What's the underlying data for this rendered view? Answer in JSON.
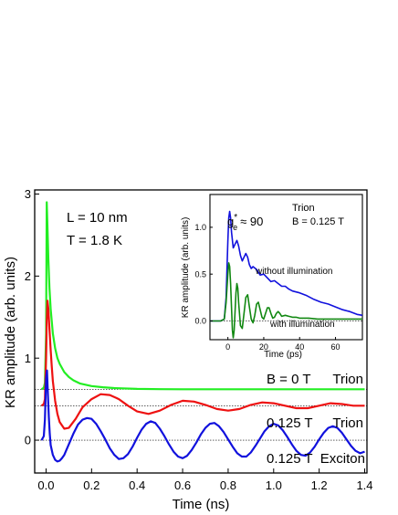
{
  "chart_data": [
    {
      "type": "line",
      "xlabel": "Time (ns)",
      "ylabel": "KR amplitude  (arb. units)",
      "xlim": [
        -0.05,
        1.41
      ],
      "ylim": [
        -0.4,
        3.05
      ],
      "xticks": [
        0.0,
        0.2,
        0.4,
        0.6,
        0.8,
        1.0,
        1.2,
        1.4
      ],
      "xtick_labels": [
        "0.0",
        "0.2",
        "0.4",
        "0.6",
        "0.8",
        "1.0",
        "1.2",
        "1.4"
      ],
      "yticks": [
        0,
        1,
        2,
        3
      ],
      "ytick_labels": [
        "0",
        "1",
        "2",
        "3"
      ],
      "grid": false,
      "annotations": {
        "sample_L": "L = 10 nm",
        "temperature": "T = 1.8 K"
      },
      "series": [
        {
          "label_field": "B = 0 T",
          "label_type": "Trion",
          "color": "#22ee22",
          "baseline": 0.62,
          "x": [
            -0.02,
            -0.01,
            -0.005,
            0.0,
            0.003,
            0.006,
            0.01,
            0.015,
            0.02,
            0.03,
            0.04,
            0.05,
            0.06,
            0.08,
            0.1,
            0.12,
            0.15,
            0.2,
            0.25,
            0.3,
            0.4,
            0.5,
            0.6,
            0.8,
            1.0,
            1.2,
            1.4
          ],
          "values": [
            0.62,
            0.64,
            0.7,
            1.3,
            2.9,
            2.6,
            2.2,
            1.85,
            1.6,
            1.3,
            1.12,
            1.0,
            0.93,
            0.83,
            0.77,
            0.73,
            0.69,
            0.66,
            0.645,
            0.635,
            0.625,
            0.622,
            0.62,
            0.62,
            0.62,
            0.62,
            0.62
          ]
        },
        {
          "label_field": "0.125 T",
          "label_type": "Trion",
          "color": "#ee1111",
          "baseline": 0.42,
          "x": [
            -0.02,
            -0.01,
            -0.005,
            0.0,
            0.003,
            0.006,
            0.01,
            0.015,
            0.02,
            0.025,
            0.03,
            0.04,
            0.05,
            0.06,
            0.08,
            0.1,
            0.13,
            0.16,
            0.2,
            0.24,
            0.28,
            0.32,
            0.36,
            0.4,
            0.45,
            0.5,
            0.55,
            0.6,
            0.65,
            0.7,
            0.75,
            0.8,
            0.85,
            0.9,
            0.95,
            1.0,
            1.05,
            1.1,
            1.15,
            1.2,
            1.25,
            1.3,
            1.35,
            1.4
          ],
          "values": [
            0.42,
            0.44,
            0.5,
            1.0,
            1.45,
            1.7,
            1.6,
            1.35,
            1.1,
            0.9,
            0.72,
            0.48,
            0.32,
            0.22,
            0.14,
            0.15,
            0.26,
            0.4,
            0.5,
            0.56,
            0.55,
            0.5,
            0.42,
            0.35,
            0.32,
            0.36,
            0.43,
            0.48,
            0.47,
            0.43,
            0.38,
            0.36,
            0.38,
            0.43,
            0.46,
            0.45,
            0.42,
            0.39,
            0.39,
            0.42,
            0.45,
            0.44,
            0.42,
            0.42
          ]
        },
        {
          "label_field": "0.125 T",
          "label_type": "Exciton",
          "color": "#1111dd",
          "baseline": 0.0,
          "x": [
            -0.02,
            -0.01,
            -0.005,
            0.0,
            0.004,
            0.008,
            0.012,
            0.016,
            0.02,
            0.03,
            0.04,
            0.05,
            0.06,
            0.07,
            0.08,
            0.1,
            0.12,
            0.14,
            0.16,
            0.18,
            0.2,
            0.22,
            0.24,
            0.26,
            0.28,
            0.3,
            0.32,
            0.34,
            0.36,
            0.38,
            0.4,
            0.42,
            0.44,
            0.46,
            0.48,
            0.5,
            0.52,
            0.54,
            0.56,
            0.58,
            0.6,
            0.62,
            0.64,
            0.66,
            0.68,
            0.7,
            0.72,
            0.74,
            0.76,
            0.78,
            0.8,
            0.82,
            0.84,
            0.86,
            0.88,
            0.9,
            0.92,
            0.94,
            0.96,
            0.98,
            1.0,
            1.02,
            1.04,
            1.06,
            1.08,
            1.1,
            1.12,
            1.14,
            1.16,
            1.18,
            1.2,
            1.22,
            1.24,
            1.26,
            1.28,
            1.3,
            1.32,
            1.34,
            1.36,
            1.38,
            1.4
          ],
          "values": [
            0.0,
            0.05,
            0.25,
            0.75,
            0.85,
            0.55,
            0.28,
            0.08,
            -0.06,
            -0.18,
            -0.24,
            -0.26,
            -0.25,
            -0.22,
            -0.18,
            -0.05,
            0.08,
            0.19,
            0.25,
            0.27,
            0.26,
            0.2,
            0.11,
            0.01,
            -0.1,
            -0.18,
            -0.23,
            -0.22,
            -0.17,
            -0.08,
            0.03,
            0.13,
            0.2,
            0.23,
            0.21,
            0.14,
            0.05,
            -0.05,
            -0.14,
            -0.2,
            -0.22,
            -0.19,
            -0.12,
            -0.03,
            0.07,
            0.15,
            0.2,
            0.21,
            0.17,
            0.1,
            0.01,
            -0.08,
            -0.16,
            -0.2,
            -0.2,
            -0.15,
            -0.07,
            0.02,
            0.11,
            0.17,
            0.2,
            0.18,
            0.12,
            0.04,
            -0.05,
            -0.13,
            -0.18,
            -0.19,
            -0.15,
            -0.08,
            0.01,
            0.09,
            0.15,
            0.17,
            0.15,
            0.09,
            0.01,
            -0.07,
            -0.13,
            -0.16,
            -0.14
          ]
        }
      ]
    },
    {
      "type": "line",
      "xlabel": "Time (ps)",
      "ylabel": "KR amplitude  (arb. units)",
      "xlim": [
        -10,
        75
      ],
      "ylim": [
        -0.2,
        1.35
      ],
      "xticks": [
        0,
        20,
        40,
        60
      ],
      "xtick_labels": [
        "0",
        "20",
        "40",
        "60"
      ],
      "yticks": [
        0.0,
        0.5,
        1.0
      ],
      "ytick_labels": [
        "0.0",
        "0.5",
        "1.0"
      ],
      "grid": false,
      "annotations": {
        "g_prefix": "g",
        "g_sup": "*",
        "g_sub": "e",
        "g_suffix": "≈ 90",
        "type": "Trion",
        "field": "B = 0.125 T"
      },
      "series": [
        {
          "name": "without illumination",
          "color": "#1111dd",
          "x": [
            -10,
            -4,
            -2,
            -1,
            0,
            0.5,
            1,
            1.5,
            2,
            3,
            4,
            5,
            6,
            7,
            8,
            9,
            10,
            11,
            12,
            13,
            14,
            16,
            18,
            20,
            22,
            24,
            26,
            28,
            30,
            32,
            34,
            36,
            38,
            40,
            44,
            48,
            52,
            56,
            60,
            64,
            68,
            72,
            75
          ],
          "values": [
            0.0,
            0.0,
            0.02,
            0.25,
            0.85,
            1.1,
            1.17,
            1.1,
            0.95,
            0.78,
            0.82,
            0.86,
            0.8,
            0.7,
            0.64,
            0.68,
            0.72,
            0.68,
            0.6,
            0.56,
            0.58,
            0.55,
            0.49,
            0.5,
            0.46,
            0.42,
            0.43,
            0.4,
            0.37,
            0.37,
            0.34,
            0.32,
            0.31,
            0.3,
            0.27,
            0.23,
            0.2,
            0.18,
            0.15,
            0.12,
            0.1,
            0.07,
            0.06
          ]
        },
        {
          "name": "with illumination",
          "color": "#118811",
          "x": [
            -10,
            -4,
            -2,
            -1,
            0,
            0.5,
            1,
            1.5,
            2,
            2.5,
            3,
            3.5,
            4,
            4.5,
            5,
            5.5,
            6,
            7,
            8,
            9,
            10,
            11,
            12,
            13,
            14,
            15,
            16,
            17,
            18,
            19,
            20,
            21,
            22,
            23,
            24,
            25,
            26,
            27,
            28,
            29,
            30,
            32,
            34,
            36,
            38,
            40,
            45,
            50,
            55,
            60,
            65,
            70,
            75
          ],
          "values": [
            0.0,
            0.0,
            0.02,
            0.2,
            0.5,
            0.62,
            0.58,
            0.4,
            0.15,
            -0.1,
            -0.18,
            -0.1,
            0.1,
            0.3,
            0.4,
            0.35,
            0.2,
            -0.05,
            -0.08,
            0.08,
            0.25,
            0.28,
            0.15,
            0.02,
            -0.02,
            0.06,
            0.18,
            0.2,
            0.12,
            0.04,
            0.02,
            0.08,
            0.14,
            0.14,
            0.08,
            0.03,
            0.04,
            0.08,
            0.1,
            0.08,
            0.05,
            0.06,
            0.05,
            0.04,
            0.04,
            0.03,
            0.03,
            0.02,
            0.02,
            0.02,
            0.02,
            0.02,
            0.02
          ]
        }
      ]
    }
  ]
}
